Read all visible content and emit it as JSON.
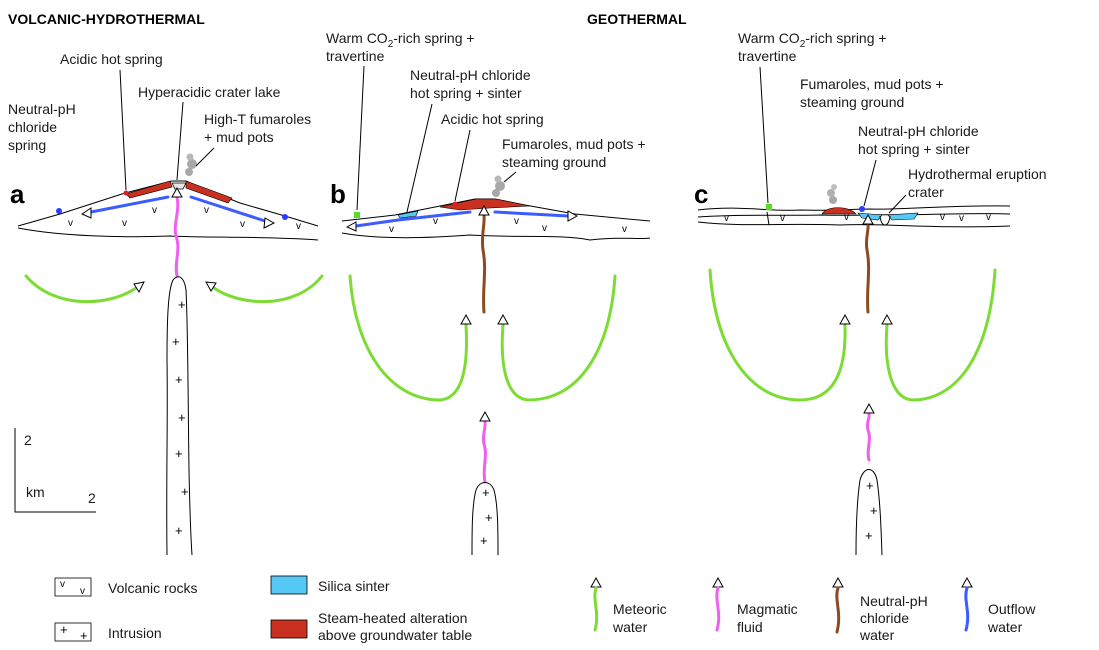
{
  "headers": {
    "volcanic": "VOLCANIC-HYDROTHERMAL",
    "geothermal": "GEOTHERMAL"
  },
  "panels": {
    "a": "a",
    "b": "b",
    "c": "c"
  },
  "labels_a": {
    "acidic_hot_spring": "Acidic hot spring",
    "crater_lake": "Hyperacidic crater lake",
    "fumaroles_l1": "High-T fumaroles",
    "fumaroles_l2": "+ mud pots",
    "chloride_l1": "Neutral-pH",
    "chloride_l2": "chloride",
    "chloride_l3": "spring"
  },
  "labels_b": {
    "co2_l1_pre": "Warm CO",
    "co2_sub": "2",
    "co2_l1_post": "-rich spring +",
    "co2_l2": "travertine",
    "chloride_l1": "Neutral-pH chloride",
    "chloride_l2": "hot spring + sinter",
    "acidic": "Acidic hot spring",
    "fumaroles_l1": "Fumaroles, mud pots +",
    "fumaroles_l2": "steaming ground"
  },
  "labels_c": {
    "co2_l1_pre": "Warm CO",
    "co2_sub": "2",
    "co2_l1_post": "-rich spring +",
    "co2_l2": "travertine",
    "fumaroles_l1": "Fumaroles, mud pots +",
    "fumaroles_l2": "steaming ground",
    "chloride_l1": "Neutral-pH chloride",
    "chloride_l2": "hot spring + sinter",
    "eruption_l1": "Hydrothermal eruption",
    "eruption_l2": "crater"
  },
  "scale": {
    "vertical": "2",
    "unit": "km",
    "horizontal": "2"
  },
  "legend": {
    "volcanic_rocks": "Volcanic rocks",
    "intrusion": "Intrusion",
    "silica_sinter": "Silica sinter",
    "steam_l1": "Steam-heated alteration",
    "steam_l2": "above groundwater table",
    "meteoric_l1": "Meteoric",
    "meteoric_l2": "water",
    "magmatic_l1": "Magmatic",
    "magmatic_l2": "fluid",
    "neutral_l1": "Neutral-pH",
    "neutral_l2": "chloride",
    "neutral_l3": "water",
    "outflow_l1": "Outflow",
    "outflow_l2": "water"
  },
  "symbols": {
    "volcanic": "v",
    "intrusion": "+"
  },
  "colors": {
    "meteoric": "#7cdc33",
    "magmatic": "#f060f0",
    "neutral_chloride": "#8b4a22",
    "outflow": "#3d5cff",
    "steam_heated": "#c9301f",
    "silica_sinter": "#55c8f5",
    "travertine_spring": "#55dd22"
  }
}
